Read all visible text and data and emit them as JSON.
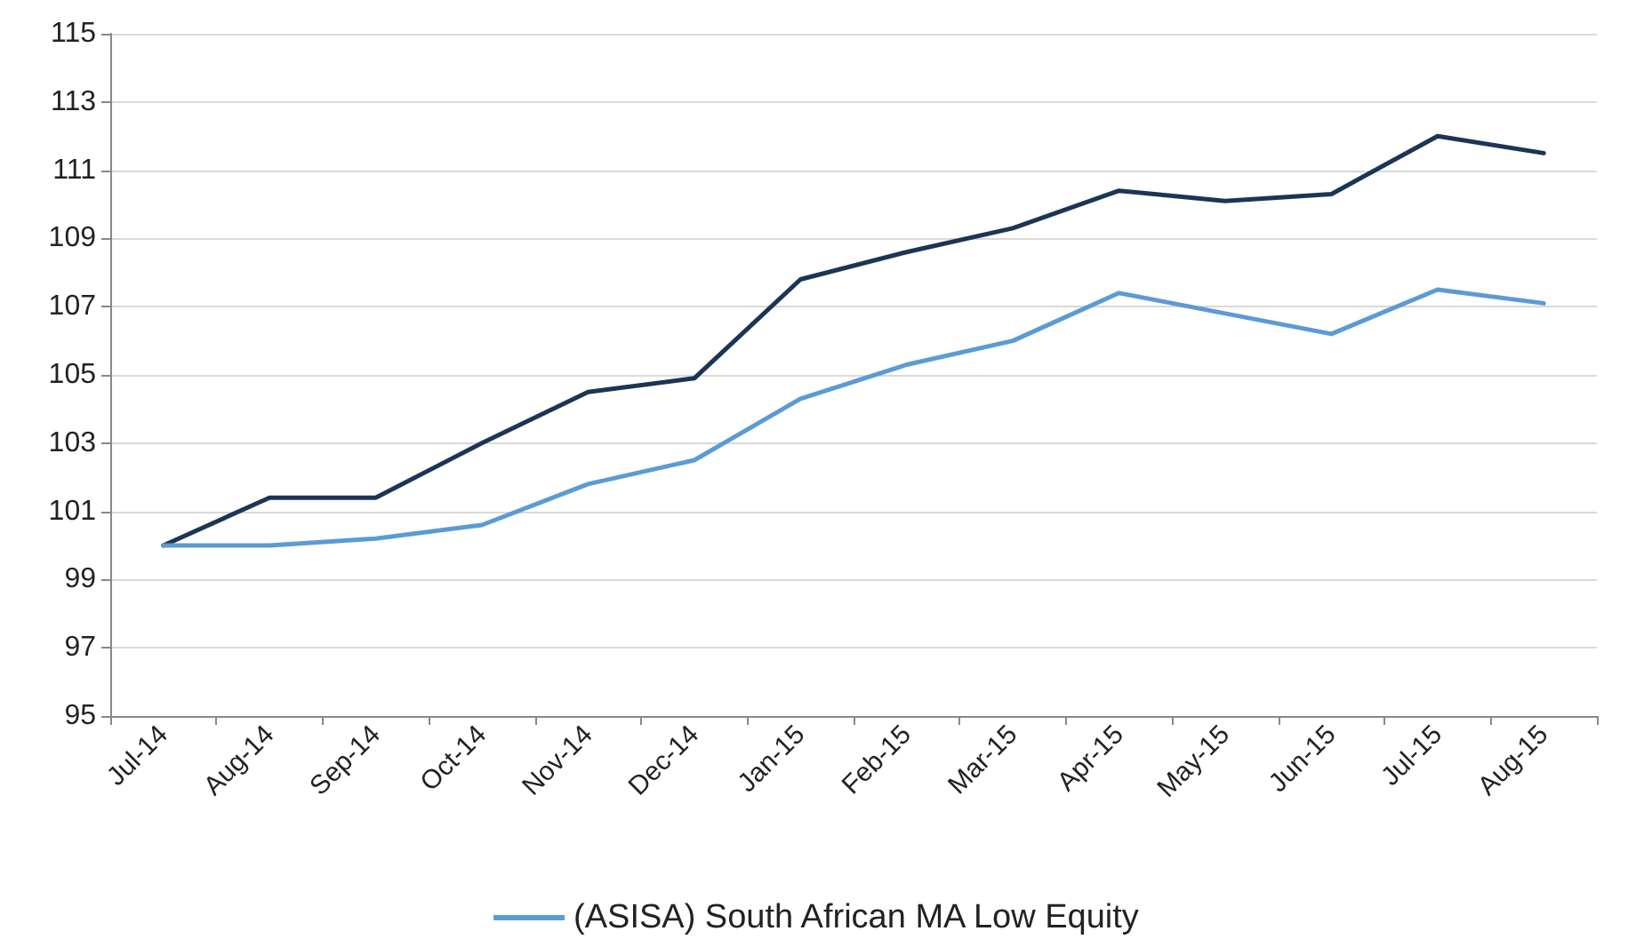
{
  "chart_data": {
    "type": "line",
    "categories": [
      "Jul-14",
      "Aug-14",
      "Sep-14",
      "Oct-14",
      "Nov-14",
      "Dec-14",
      "Jan-15",
      "Feb-15",
      "Mar-15",
      "Apr-15",
      "May-15",
      "Jun-15",
      "Jul-15",
      "Aug-15"
    ],
    "series": [
      {
        "color": "#1b3556",
        "values": [
          100,
          101.4,
          101.4,
          103,
          104.5,
          104.9,
          107.8,
          108.6,
          109.3,
          110.4,
          110.1,
          110.3,
          112,
          111.5
        ]
      },
      {
        "name": "(ASISA) South African MA Low Equity",
        "color": "#5b9bd5",
        "values": [
          100,
          100,
          100.2,
          100.6,
          101.8,
          102.5,
          104.3,
          105.3,
          106,
          107.4,
          106.8,
          106.2,
          107.5,
          107.1
        ]
      }
    ],
    "ylim": [
      95,
      115
    ],
    "yticks": [
      95,
      97,
      99,
      101,
      103,
      105,
      107,
      109,
      111,
      113,
      115
    ],
    "grid": "y",
    "legend": "bottom",
    "marker": "none",
    "line_style": "solid"
  }
}
